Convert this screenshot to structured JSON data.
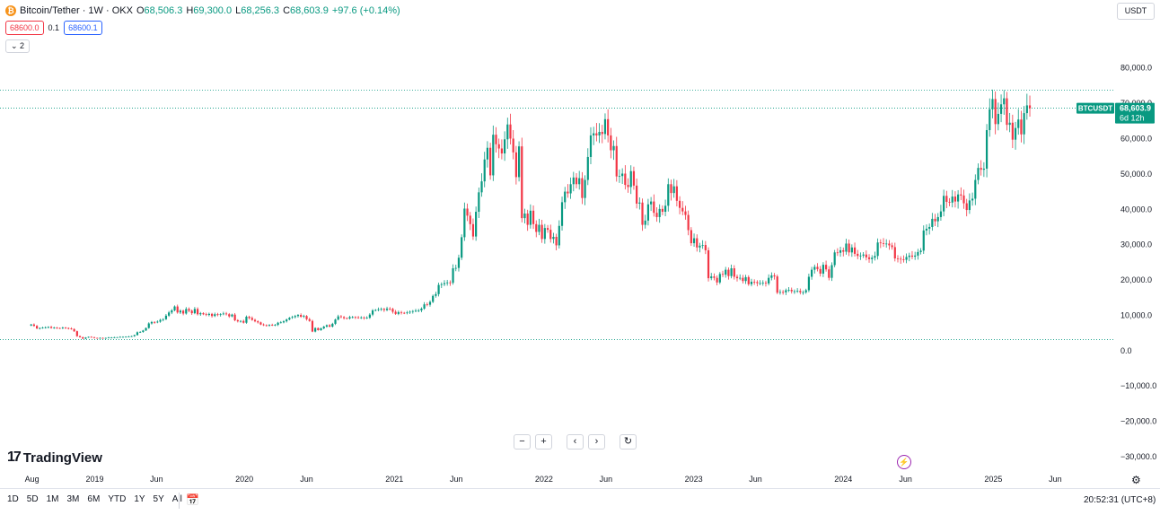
{
  "header": {
    "coin_icon_text": "₿",
    "title": "Bitcoin/Tether · 1W · OKX",
    "open_label": "O",
    "open": "68,506.3",
    "high_label": "H",
    "high": "69,300.0",
    "low_label": "L",
    "low": "68,256.3",
    "close_label": "C",
    "close": "68,603.9",
    "change": "+97.6 (+0.14%)"
  },
  "order": {
    "bid": "68600.0",
    "spread": "0.1",
    "ask": "68600.1"
  },
  "indicators_toggle": "⌄ 2",
  "currency": "USDT",
  "logo": {
    "mark": "17",
    "text": "TradingView"
  },
  "nav": {
    "zoom_out": "−",
    "zoom_in": "+",
    "left": "‹",
    "right": "›",
    "reset": "↻"
  },
  "lightning_icon": "⚡",
  "settings_icon": "⚙",
  "ranges": [
    "1D",
    "5D",
    "1M",
    "3M",
    "6M",
    "YTD",
    "1Y",
    "5Y",
    "All"
  ],
  "calendar_icon": "📅",
  "clock": "20:52:31 (UTC+8)",
  "colors": {
    "up": "#089981",
    "down": "#f23645",
    "axis_text": "#131722",
    "price_line": "#089981"
  },
  "chart_data": {
    "type": "candlestick",
    "symbol_label": "BTCUSDT",
    "last_price": "68,603.9",
    "countdown": "6d 12h",
    "ylim": [
      -30000,
      85000
    ],
    "yticks": [
      80000,
      70000,
      60000,
      50000,
      40000,
      30000,
      20000,
      10000,
      0,
      -10000,
      -20000,
      -30000
    ],
    "ytick_labels": [
      "80,000.0",
      "70,000.0",
      "60,000.0",
      "50,000.0",
      "40,000.0",
      "30,000.0",
      "20,000.0",
      "10,000.0",
      "0.0",
      "−10,000.0",
      "−20,000.0",
      "−30,000.0"
    ],
    "xlim": [
      "2018-05-15",
      "2025-10-25"
    ],
    "xticks": [
      {
        "label": "Aug",
        "date": "2018-08-01"
      },
      {
        "label": "2019",
        "date": "2019-01-01"
      },
      {
        "label": "Jun",
        "date": "2019-06-01"
      },
      {
        "label": "2020",
        "date": "2020-01-01"
      },
      {
        "label": "Jun",
        "date": "2020-06-01"
      },
      {
        "label": "2021",
        "date": "2021-01-01"
      },
      {
        "label": "Jun",
        "date": "2021-06-01"
      },
      {
        "label": "2022",
        "date": "2022-01-01"
      },
      {
        "label": "Jun",
        "date": "2022-06-01"
      },
      {
        "label": "2023",
        "date": "2023-01-01"
      },
      {
        "label": "Jun",
        "date": "2023-06-01"
      },
      {
        "label": "2024",
        "date": "2024-01-01"
      },
      {
        "label": "Jun",
        "date": "2024-06-01"
      },
      {
        "label": "2025",
        "date": "2025-01-01"
      },
      {
        "label": "Jun",
        "date": "2025-06-01"
      }
    ],
    "reference_lines": [
      73700,
      68604,
      3150
    ],
    "first_candle_date": "2018-07-30",
    "candle_interval_days": 7,
    "closes": [
      7400,
      7000,
      6300,
      6400,
      6500,
      6600,
      6700,
      6400,
      6500,
      6400,
      6300,
      6500,
      6400,
      6300,
      6100,
      5500,
      4100,
      3800,
      3400,
      3700,
      3900,
      3800,
      3600,
      3550,
      3600,
      3500,
      3600,
      3700,
      3700,
      3800,
      3800,
      3900,
      3900,
      3950,
      4000,
      4100,
      4400,
      5200,
      5300,
      5700,
      6400,
      7700,
      8100,
      8000,
      8200,
      8700,
      8900,
      9900,
      10800,
      11400,
      12500,
      10800,
      11300,
      10500,
      11800,
      11300,
      10600,
      11800,
      10300,
      10600,
      10300,
      10100,
      10400,
      9800,
      10300,
      10100,
      10300,
      10500,
      10300,
      9700,
      10200,
      8600,
      8300,
      8400,
      7900,
      9600,
      9250,
      8700,
      8300,
      8000,
      7400,
      7200,
      7100,
      7300,
      7200,
      7300,
      7900,
      8000,
      8300,
      8800,
      9300,
      9500,
      9800,
      10100,
      9600,
      9800,
      8900,
      8400,
      5400,
      6400,
      5800,
      6300,
      6800,
      7200,
      6800,
      7600,
      8800,
      9700,
      9500,
      9200,
      9100,
      9500,
      9500,
      9400,
      9300,
      9400,
      9200,
      9300,
      10200,
      11400,
      11500,
      11700,
      11800,
      11500,
      11900,
      11800,
      11000,
      10400,
      10900,
      10700,
      10600,
      10800,
      11000,
      11200,
      11300,
      11400,
      11900,
      13100,
      13000,
      13800,
      15500,
      16000,
      18600,
      18800,
      19100,
      19300,
      19200,
      23300,
      23400,
      26300,
      32100,
      40200,
      38200,
      35800,
      32300,
      39300,
      44800,
      47900,
      54100,
      57400,
      49600,
      61100,
      58400,
      57200,
      55800,
      59800,
      64000,
      60000,
      56100,
      49100,
      57800,
      37500,
      38800,
      35600,
      39600,
      35800,
      33600,
      35600,
      31600,
      34700,
      34200,
      31600,
      32200,
      29800,
      35300,
      42000,
      45000,
      44500,
      47100,
      49000,
      47100,
      48800,
      43200,
      48300,
      54800,
      60900,
      61500,
      60900,
      61900,
      61300,
      65500,
      60900,
      56700,
      57900,
      49300,
      49400,
      50100,
      46900,
      46300,
      50800,
      46700,
      41600,
      41900,
      35600,
      36800,
      41400,
      42200,
      39000,
      37800,
      40100,
      39300,
      41000,
      47100,
      44600,
      46500,
      42400,
      40400,
      39400,
      38400,
      34100,
      30400,
      31800,
      29200,
      29700,
      29900,
      28400,
      20500,
      21000,
      20600,
      19300,
      21700,
      21500,
      22900,
      21100,
      23300,
      20900,
      20500,
      20600,
      19700,
      20800,
      18800,
      19500,
      19400,
      19100,
      19100,
      19200,
      19000,
      20600,
      21300,
      21000,
      16400,
      16600,
      16500,
      17100,
      17200,
      16800,
      16800,
      16900,
      16500,
      16500,
      17100,
      20900,
      22900,
      23700,
      23100,
      21800,
      24300,
      23000,
      20600,
      24200,
      27800,
      27700,
      28400,
      28000,
      30300,
      27800,
      29200,
      27400,
      26800,
      26900,
      27200,
      26400,
      25900,
      26300,
      26800,
      30600,
      30400,
      30200,
      30300,
      29800,
      29300,
      26100,
      26000,
      25800,
      25700,
      26500,
      26900,
      26600,
      26900,
      27900,
      28300,
      34000,
      34500,
      35000,
      37300,
      36600,
      37800,
      39400,
      43800,
      42100,
      41900,
      43600,
      42200,
      44200,
      43900,
      41700,
      39800,
      42500,
      43000,
      48300,
      51700,
      51200,
      51500,
      62400,
      68300,
      71200,
      64100,
      67000,
      69700,
      71400,
      63900,
      64500,
      59700,
      63000,
      65400,
      61200,
      67200,
      69400,
      68604
    ],
    "candles_detail": "ohlc derived: open = previous close; wick high/low extend beyond body"
  }
}
